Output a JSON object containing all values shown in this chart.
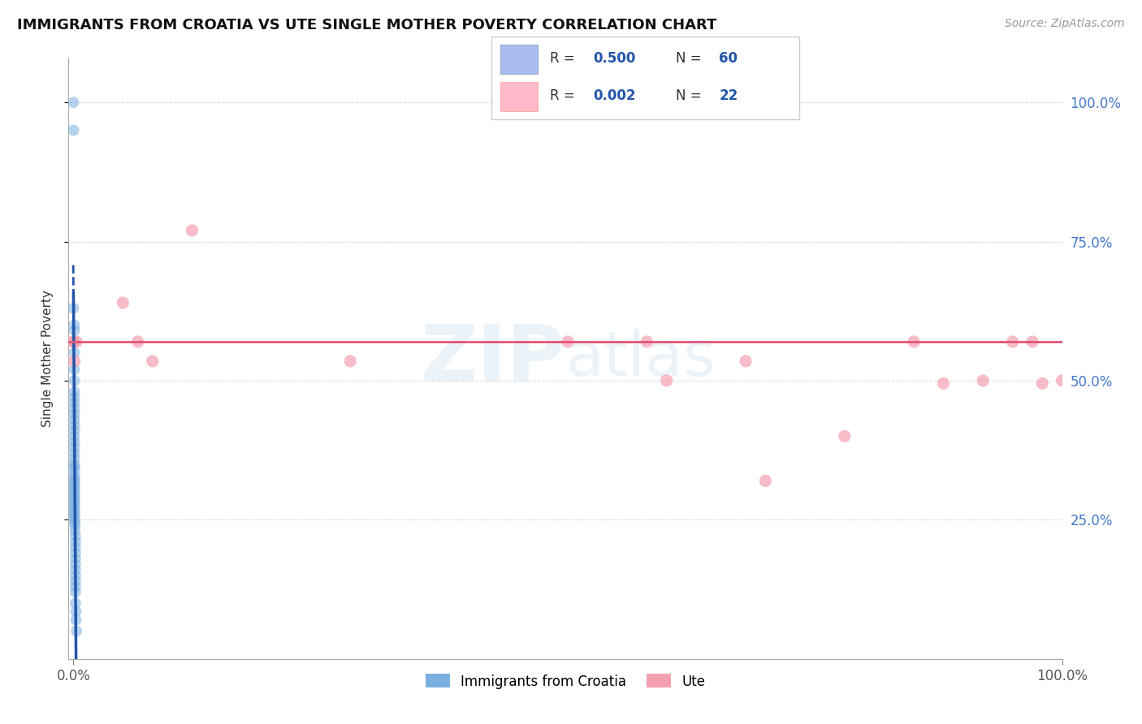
{
  "title": "IMMIGRANTS FROM CROATIA VS UTE SINGLE MOTHER POVERTY CORRELATION CHART",
  "source": "Source: ZipAtlas.com",
  "ylabel": "Single Mother Poverty",
  "legend1_R": "0.500",
  "legend1_N": "60",
  "legend2_R": "0.002",
  "legend2_N": "22",
  "legend1_label": "Immigrants from Croatia",
  "legend2_label": "Ute",
  "blue_color": "#7ab0e0",
  "pink_color": "#f5a0b0",
  "blue_line_color": "#2255aa",
  "pink_line_color": "#e05575",
  "watermark_color": "#c8ddf0",
  "blue_x": [
    0.0,
    0.0,
    0.0,
    0.001,
    0.001,
    0.001,
    0.001,
    0.001,
    0.001,
    0.001,
    0.001,
    0.001,
    0.001,
    0.001,
    0.001,
    0.001,
    0.001,
    0.001,
    0.001,
    0.001,
    0.001,
    0.001,
    0.001,
    0.001,
    0.001,
    0.001,
    0.001,
    0.001,
    0.001,
    0.001,
    0.001,
    0.001,
    0.001,
    0.001,
    0.001,
    0.001,
    0.001,
    0.001,
    0.001,
    0.001,
    0.001,
    0.001,
    0.0015,
    0.0015,
    0.0015,
    0.002,
    0.002,
    0.002,
    0.002,
    0.002,
    0.002,
    0.002,
    0.002,
    0.002,
    0.002,
    0.002,
    0.002,
    0.0025,
    0.0025,
    0.003
  ],
  "blue_y": [
    1.0,
    0.95,
    0.63,
    0.6,
    0.59,
    0.57,
    0.55,
    0.52,
    0.5,
    0.48,
    0.47,
    0.46,
    0.45,
    0.44,
    0.43,
    0.42,
    0.41,
    0.4,
    0.39,
    0.38,
    0.37,
    0.36,
    0.35,
    0.345,
    0.34,
    0.33,
    0.325,
    0.32,
    0.315,
    0.31,
    0.305,
    0.3,
    0.295,
    0.29,
    0.285,
    0.28,
    0.275,
    0.27,
    0.265,
    0.26,
    0.255,
    0.25,
    0.245,
    0.24,
    0.23,
    0.22,
    0.21,
    0.2,
    0.19,
    0.18,
    0.17,
    0.16,
    0.15,
    0.14,
    0.13,
    0.12,
    0.1,
    0.085,
    0.07,
    0.05
  ],
  "pink_x": [
    0.0,
    0.0,
    0.001,
    0.003,
    0.05,
    0.065,
    0.08,
    0.12,
    0.28,
    0.5,
    0.58,
    0.6,
    0.68,
    0.7,
    0.78,
    0.85,
    0.88,
    0.92,
    0.95,
    0.97,
    0.98,
    1.0
  ],
  "pink_y": [
    0.57,
    0.57,
    0.535,
    0.57,
    0.64,
    0.57,
    0.535,
    0.77,
    0.535,
    0.57,
    0.57,
    0.5,
    0.535,
    0.32,
    0.4,
    0.57,
    0.495,
    0.5,
    0.57,
    0.57,
    0.495,
    0.5
  ],
  "pink_trend_y": 0.57,
  "xlim": [
    0.0,
    1.0
  ],
  "ylim": [
    0.0,
    1.08
  ],
  "yticks": [
    0.25,
    0.5,
    0.75,
    1.0
  ],
  "ytick_labels": [
    "25.0%",
    "50.0%",
    "75.0%",
    "100.0%"
  ],
  "xtick_labels": [
    "0.0%",
    "100.0%"
  ],
  "grid_color": "#dddddd",
  "dashed_grid_color": "#dddddd"
}
